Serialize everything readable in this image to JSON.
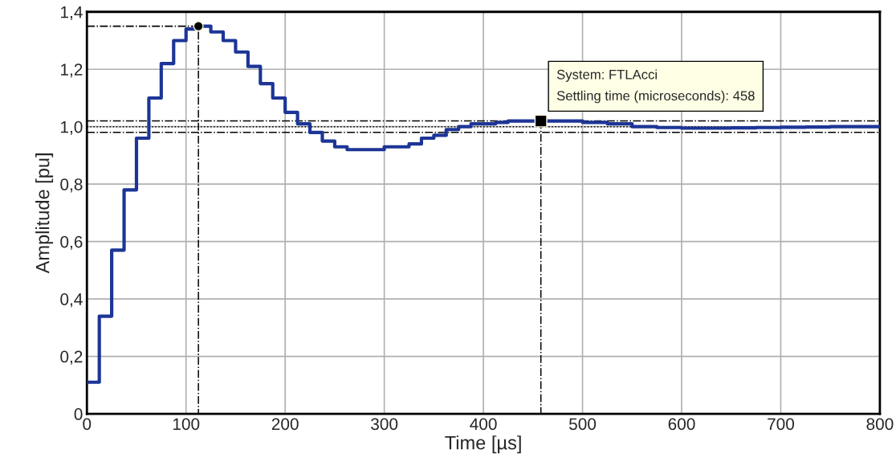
{
  "chart_data": {
    "type": "step",
    "xlabel": "Time [µs]",
    "ylabel": "Amplitude [pu]",
    "xlim": [
      0,
      800
    ],
    "xticks": [
      0,
      100,
      200,
      300,
      400,
      500,
      600,
      700,
      800
    ],
    "ylim": [
      0,
      1.4
    ],
    "yticks": [
      0,
      {
        "value": 0.2,
        "label": "0,2"
      },
      {
        "value": 0.4,
        "label": "0,4"
      },
      {
        "value": 0.6,
        "label": "0,6"
      },
      {
        "value": 0.8,
        "label": "0,8"
      },
      {
        "value": 1.0,
        "label": "1,0"
      },
      {
        "value": 1.2,
        "label": "1,2"
      },
      {
        "value": 1.4,
        "label": "1,4"
      }
    ],
    "grid": true,
    "line_style": "solid",
    "series": [
      {
        "color": "#1c3596",
        "x": [
          0,
          12.5,
          25,
          37.5,
          50,
          62.5,
          75,
          87.5,
          100,
          112.5,
          125,
          137.5,
          150,
          162.5,
          175,
          187.5,
          200,
          212.5,
          225,
          237.5,
          250,
          262.5,
          275,
          287.5,
          300,
          312.5,
          325,
          337.5,
          350,
          362.5,
          375,
          387.5,
          400,
          412.5,
          425,
          437.5,
          450,
          462.5,
          475,
          487.5,
          500,
          525,
          550,
          575,
          600,
          625,
          650,
          675,
          700,
          725,
          750,
          775,
          800
        ],
        "values": [
          0.11,
          0.34,
          0.57,
          0.78,
          0.96,
          1.1,
          1.22,
          1.3,
          1.34,
          1.35,
          1.33,
          1.3,
          1.26,
          1.21,
          1.15,
          1.1,
          1.05,
          1.01,
          0.98,
          0.95,
          0.93,
          0.92,
          0.92,
          0.92,
          0.93,
          0.93,
          0.94,
          0.96,
          0.97,
          0.99,
          1.0,
          1.01,
          1.01,
          1.015,
          1.02,
          1.02,
          1.02,
          1.02,
          1.02,
          1.02,
          1.015,
          1.01,
          1.0,
          0.997,
          0.995,
          0.995,
          0.996,
          0.997,
          0.998,
          0.999,
          1.0,
          1.0,
          1.0
        ]
      },
      {
        "type": "line",
        "color": "#000000",
        "line_style": "dashdot",
        "x": [
          0,
          112.5,
          112.5
        ],
        "values": [
          1.35,
          1.35,
          0
        ]
      },
      {
        "type": "line",
        "color": "#000000",
        "line_style": "dashdot",
        "x": [
          458,
          458
        ],
        "values": [
          1.02,
          0
        ]
      },
      {
        "type": "scatter",
        "color": "#000000",
        "marker": "circle",
        "x": [
          112.5
        ],
        "values": [
          1.35
        ]
      },
      {
        "type": "scatter",
        "color": "#000000",
        "marker": "square",
        "x": [
          458
        ],
        "values": [
          1.02
        ]
      }
    ],
    "ref_lines": [
      {
        "axis": "y",
        "value": 1.02,
        "line_style": "dashdot",
        "color": "#000000"
      },
      {
        "axis": "y",
        "value": 1.0,
        "line_style": "dotted",
        "color": "#000000"
      },
      {
        "axis": "y",
        "value": 0.98,
        "line_style": "dashdot",
        "color": "#000000"
      }
    ],
    "annotations": [
      {
        "text": "System: FTLAcci\nSettling time (microseconds): 458",
        "x": 458,
        "y": 1.02
      }
    ]
  }
}
